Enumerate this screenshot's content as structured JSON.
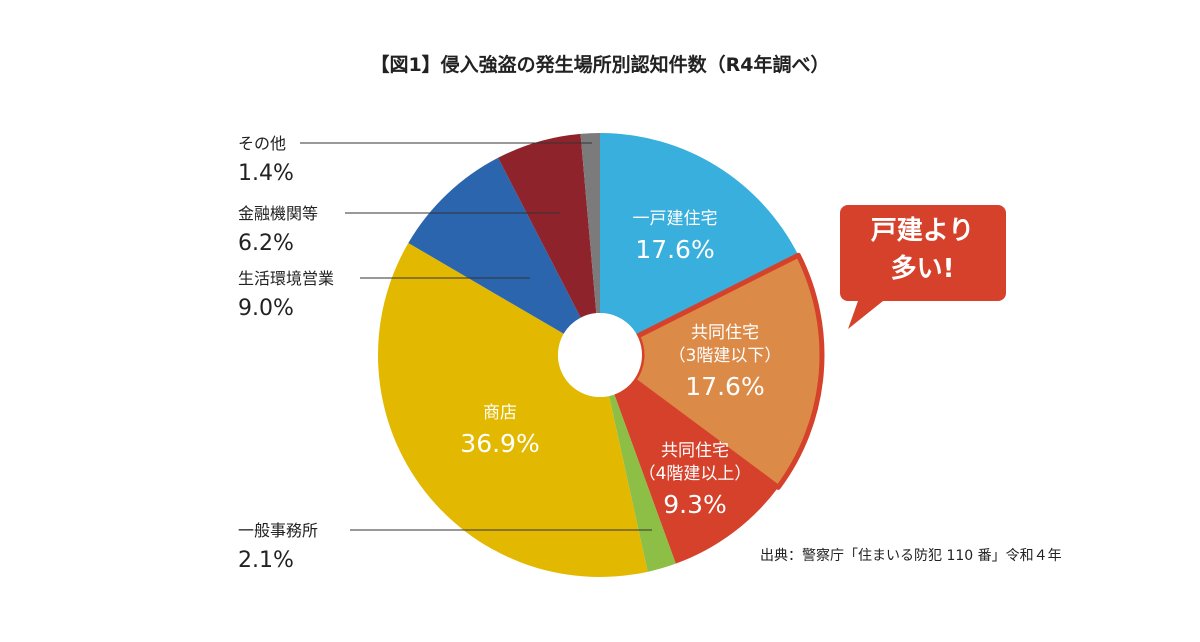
{
  "chart_data": {
    "type": "donut",
    "title": "【図1】侵入強盗の発生場所別認知件数（R4年調べ）",
    "categories": [
      "一戸建住宅",
      "共同住宅\n（3階建以下）",
      "共同住宅\n（4階建以上）",
      "一般事務所",
      "商店",
      "生活環境営業",
      "金融機関等",
      "その他"
    ],
    "values": [
      17.6,
      17.6,
      9.3,
      2.1,
      36.9,
      9.0,
      6.2,
      1.4
    ],
    "value_labels": [
      "17.6%",
      "17.6%",
      "9.3%",
      "2.1%",
      "36.9%",
      "9.0%",
      "6.2%",
      "1.4%"
    ],
    "colors": [
      "#38afdd",
      "#dc8a48",
      "#d5412a",
      "#8dbe46",
      "#e2b900",
      "#2b65ad",
      "#8f232c",
      "#7b7b7b"
    ],
    "annotation": "戸建より\n多い!",
    "source": "出典：警察庁「住まいる防犯 110 番」令和４年"
  }
}
